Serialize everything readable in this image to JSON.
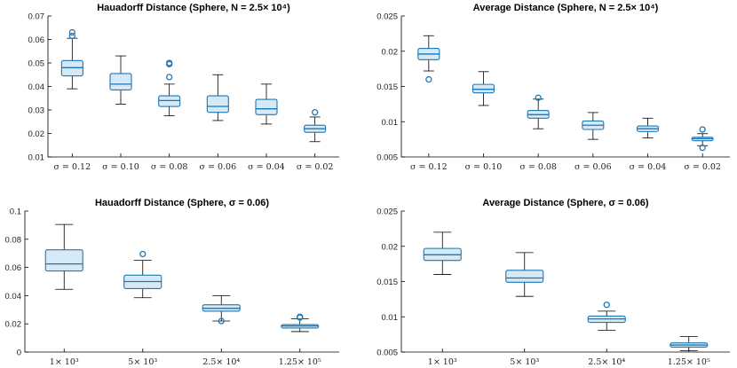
{
  "chart_data": [
    {
      "type": "box",
      "title": "Hauadorff Distance (Sphere, N = 2.5× 10⁴)",
      "ylim": [
        0.01,
        0.07
      ],
      "yticks": [
        "0.01",
        "0.02",
        "0.03",
        "0.04",
        "0.05",
        "0.06",
        "0.07"
      ],
      "categories": [
        "σ = 0.12",
        "σ = 0.10",
        "σ = 0.08",
        "σ = 0.06",
        "σ = 0.04",
        "σ = 0.02"
      ],
      "boxes": [
        {
          "whislo": 0.039,
          "q1": 0.0445,
          "med": 0.048,
          "q3": 0.051,
          "whishi": 0.0605,
          "fliers": [
            0.0615,
            0.063
          ]
        },
        {
          "whislo": 0.0325,
          "q1": 0.0385,
          "med": 0.041,
          "q3": 0.0455,
          "whishi": 0.053,
          "fliers": []
        },
        {
          "whislo": 0.0275,
          "q1": 0.0315,
          "med": 0.034,
          "q3": 0.036,
          "whishi": 0.041,
          "fliers": [
            0.044,
            0.0495,
            0.05
          ]
        },
        {
          "whislo": 0.0255,
          "q1": 0.029,
          "med": 0.0315,
          "q3": 0.036,
          "whishi": 0.045,
          "fliers": []
        },
        {
          "whislo": 0.024,
          "q1": 0.028,
          "med": 0.0305,
          "q3": 0.0345,
          "whishi": 0.041,
          "fliers": []
        },
        {
          "whislo": 0.0165,
          "q1": 0.0205,
          "med": 0.022,
          "q3": 0.0235,
          "whishi": 0.027,
          "fliers": [
            0.029
          ]
        }
      ]
    },
    {
      "type": "box",
      "title": "Average Distance (Sphere, N = 2.5× 10⁴)",
      "ylim": [
        0.005,
        0.025
      ],
      "yticks": [
        "0.005",
        "0.01",
        "0.015",
        "0.02",
        "0.025"
      ],
      "categories": [
        "σ = 0.12",
        "σ = 0.10",
        "σ = 0.08",
        "σ = 0.06",
        "σ = 0.04",
        "σ = 0.02"
      ],
      "boxes": [
        {
          "whislo": 0.0172,
          "q1": 0.0188,
          "med": 0.0196,
          "q3": 0.0204,
          "whishi": 0.0222,
          "fliers": [
            0.016
          ]
        },
        {
          "whislo": 0.0123,
          "q1": 0.0141,
          "med": 0.0146,
          "q3": 0.0153,
          "whishi": 0.0171,
          "fliers": []
        },
        {
          "whislo": 0.009,
          "q1": 0.0105,
          "med": 0.011,
          "q3": 0.0116,
          "whishi": 0.0132,
          "fliers": [
            0.0134
          ]
        },
        {
          "whislo": 0.0075,
          "q1": 0.0089,
          "med": 0.0095,
          "q3": 0.0101,
          "whishi": 0.0113,
          "fliers": []
        },
        {
          "whislo": 0.0077,
          "q1": 0.0086,
          "med": 0.009,
          "q3": 0.0094,
          "whishi": 0.0105,
          "fliers": []
        },
        {
          "whislo": 0.0066,
          "q1": 0.0073,
          "med": 0.0076,
          "q3": 0.0078,
          "whishi": 0.0083,
          "fliers": [
            0.0089,
            0.0063
          ]
        }
      ]
    },
    {
      "type": "box",
      "title": "Hauadorff Distance (Sphere, σ = 0.06)",
      "ylim": [
        0,
        0.1
      ],
      "yticks": [
        "0",
        "0.02",
        "0.04",
        "0.06",
        "0.08",
        "0.1"
      ],
      "categories": [
        "1× 10³",
        "5× 10³",
        "2.5× 10⁴",
        "1.25× 10⁵"
      ],
      "boxes": [
        {
          "whislo": 0.0445,
          "q1": 0.0575,
          "med": 0.0625,
          "q3": 0.0725,
          "whishi": 0.0905,
          "fliers": []
        },
        {
          "whislo": 0.0385,
          "q1": 0.045,
          "med": 0.05,
          "q3": 0.0545,
          "whishi": 0.065,
          "fliers": [
            0.0695
          ]
        },
        {
          "whislo": 0.022,
          "q1": 0.029,
          "med": 0.031,
          "q3": 0.0335,
          "whishi": 0.04,
          "fliers": [
            0.022
          ]
        },
        {
          "whislo": 0.0145,
          "q1": 0.017,
          "med": 0.0185,
          "q3": 0.0195,
          "whishi": 0.0235,
          "fliers": [
            0.0245,
            0.025
          ]
        }
      ]
    },
    {
      "type": "box",
      "title": "Average Distance (Sphere, σ = 0.06)",
      "ylim": [
        0.005,
        0.025
      ],
      "yticks": [
        "0.005",
        "0.01",
        "0.015",
        "0.02",
        "0.025"
      ],
      "categories": [
        "1× 10³",
        "5× 10³",
        "2.5× 10⁴",
        "1.25× 10⁵"
      ],
      "boxes": [
        {
          "whislo": 0.016,
          "q1": 0.018,
          "med": 0.0188,
          "q3": 0.0197,
          "whishi": 0.022,
          "fliers": []
        },
        {
          "whislo": 0.0129,
          "q1": 0.0149,
          "med": 0.0155,
          "q3": 0.0166,
          "whishi": 0.0191,
          "fliers": []
        },
        {
          "whislo": 0.0081,
          "q1": 0.0092,
          "med": 0.0097,
          "q3": 0.0101,
          "whishi": 0.0108,
          "fliers": [
            0.0117
          ]
        },
        {
          "whislo": 0.0052,
          "q1": 0.0057,
          "med": 0.006,
          "q3": 0.0063,
          "whishi": 0.0072,
          "fliers": []
        }
      ]
    }
  ]
}
